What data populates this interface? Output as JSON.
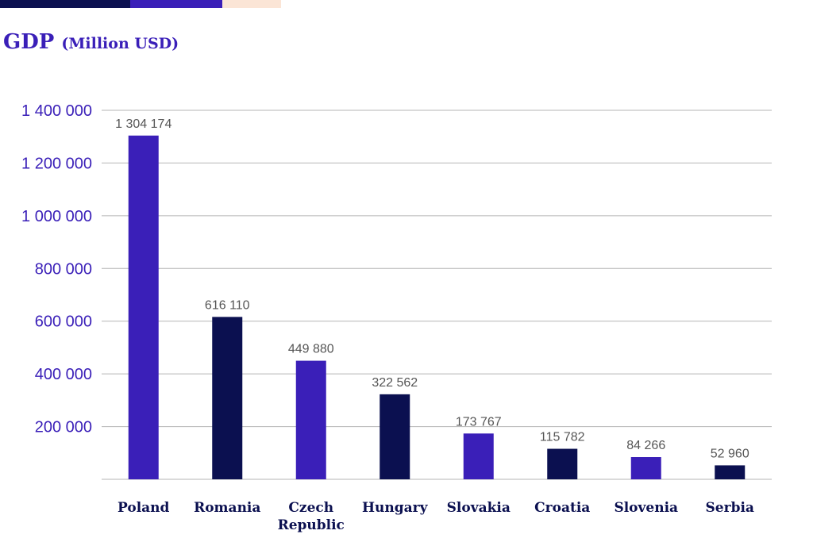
{
  "header": {
    "segments": [
      {
        "name": "dark",
        "color": "#0b1050"
      },
      {
        "name": "purple",
        "color": "#3a1fb8"
      },
      {
        "name": "peach",
        "color": "#fbe5d6"
      }
    ]
  },
  "title": {
    "main": "GDP",
    "unit": "(Million USD)"
  },
  "colors": {
    "purple": "#3a1fb8",
    "navy": "#0b1050",
    "grid": "#b5b5b5"
  },
  "chart_data": {
    "type": "bar",
    "title": "GDP (Million USD)",
    "xlabel": "",
    "ylabel": "",
    "ylim": [
      0,
      1400000
    ],
    "yticks": [
      {
        "value": 200000,
        "label": "200 000"
      },
      {
        "value": 400000,
        "label": "400 000"
      },
      {
        "value": 600000,
        "label": "600 000"
      },
      {
        "value": 800000,
        "label": "800 000"
      },
      {
        "value": 1000000,
        "label": "1 000 000"
      },
      {
        "value": 1200000,
        "label": "1 200 000"
      },
      {
        "value": 1400000,
        "label": "1 400 000"
      }
    ],
    "grid": true,
    "categories": [
      "Poland",
      "Romania",
      "Czech Republic",
      "Hungary",
      "Slovakia",
      "Croatia",
      "Slovenia",
      "Serbia"
    ],
    "category_lines": [
      [
        "Poland"
      ],
      [
        "Romania"
      ],
      [
        "Czech",
        "Republic"
      ],
      [
        "Hungary"
      ],
      [
        "Slovakia"
      ],
      [
        "Croatia"
      ],
      [
        "Slovenia"
      ],
      [
        "Serbia"
      ]
    ],
    "values": [
      1304174,
      616110,
      449880,
      322562,
      173767,
      115782,
      84266,
      52960
    ],
    "value_labels": [
      "1 304 174",
      "616 110",
      "449 880",
      "322 562",
      "173 767",
      "115 782",
      "84 266",
      "52 960"
    ],
    "bar_colors": [
      "#3a1fb8",
      "#0b1050",
      "#3a1fb8",
      "#0b1050",
      "#3a1fb8",
      "#0b1050",
      "#3a1fb8",
      "#0b1050"
    ]
  }
}
